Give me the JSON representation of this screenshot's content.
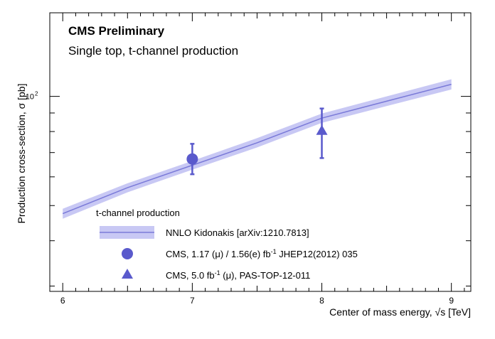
{
  "chart_data": {
    "type": "line",
    "title": "CMS Preliminary",
    "subtitle": "Single top, t-channel production",
    "xlabel": "Center of mass energy, √s [TeV]",
    "ylabel": "Production cross-section, σ [pb]",
    "xlim": [
      5.9,
      9.15
    ],
    "ylim": [
      29,
      170
    ],
    "y_scale": "log",
    "x_ticks": [
      "6",
      "7",
      "8",
      "9"
    ],
    "y_ticks": [
      {
        "value": 100,
        "label": "10",
        "exponent": "2"
      }
    ],
    "grid": false,
    "legend": {
      "position": "bottom-left",
      "header": "t-channel production"
    },
    "series": [
      {
        "name": "NNLO Kidonakis [arXiv:1210.7813]",
        "kind": "band",
        "color": "#7a7ad8",
        "band_color": "#c8c8f4",
        "x": [
          6.0,
          6.5,
          7.0,
          7.5,
          8.0,
          8.5,
          9.0
        ],
        "y": [
          47.5,
          56.0,
          64.6,
          74.5,
          87.1,
          97.0,
          108.0
        ],
        "y_low": [
          46.0,
          54.4,
          62.8,
          72.3,
          84.5,
          94.0,
          104.5
        ],
        "y_high": [
          49.0,
          57.6,
          66.4,
          76.7,
          89.7,
          100.0,
          111.5
        ]
      },
      {
        "name": "CMS, 1.17 (μ) / 1.56(e) fb",
        "legend_sup": "-1",
        "legend_tail": " JHEP12(2012) 035",
        "kind": "point",
        "marker": "circle",
        "color": "#5a5acc",
        "x": [
          7.0
        ],
        "y": [
          67.2
        ],
        "y_err_low": [
          6.2
        ],
        "y_err_high": [
          6.8
        ]
      },
      {
        "name": "CMS, 5.0 fb",
        "legend_sup": "-1",
        "legend_tail": " (μ), PAS-TOP-12-011",
        "kind": "point",
        "marker": "triangle",
        "color": "#5a5acc",
        "x": [
          8.0
        ],
        "y": [
          80.1
        ],
        "y_err_low": [
          12.5
        ],
        "y_err_high": [
          12.5
        ]
      }
    ]
  }
}
